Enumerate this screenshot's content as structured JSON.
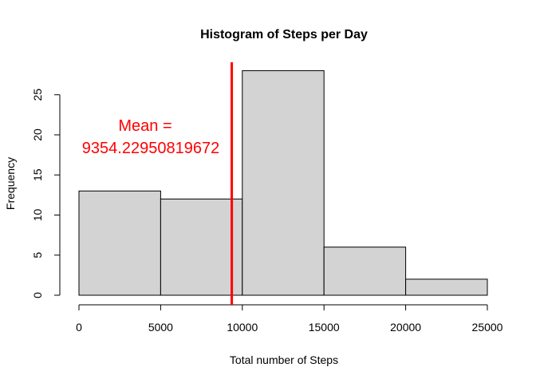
{
  "chart_data": {
    "type": "bar",
    "subtype": "histogram",
    "title": "Histogram of Steps per Day",
    "xlabel": "Total number of Steps",
    "ylabel": "Frequency",
    "bins": [
      {
        "start": 0,
        "end": 5000,
        "count": 13
      },
      {
        "start": 5000,
        "end": 10000,
        "count": 12
      },
      {
        "start": 10000,
        "end": 15000,
        "count": 28
      },
      {
        "start": 15000,
        "end": 20000,
        "count": 6
      },
      {
        "start": 20000,
        "end": 25000,
        "count": 2
      }
    ],
    "xlim": [
      0,
      25000
    ],
    "ylim": [
      0,
      28
    ],
    "x_ticks": [
      0,
      5000,
      10000,
      15000,
      20000,
      25000
    ],
    "y_ticks": [
      0,
      5,
      10,
      15,
      20,
      25
    ],
    "bar_color": "#d3d3d3",
    "mean": {
      "value": 9354.22950819672,
      "color": "#ff0000",
      "label_line1": "Mean =",
      "label_line2": "9354.22950819672"
    },
    "grid": false
  }
}
